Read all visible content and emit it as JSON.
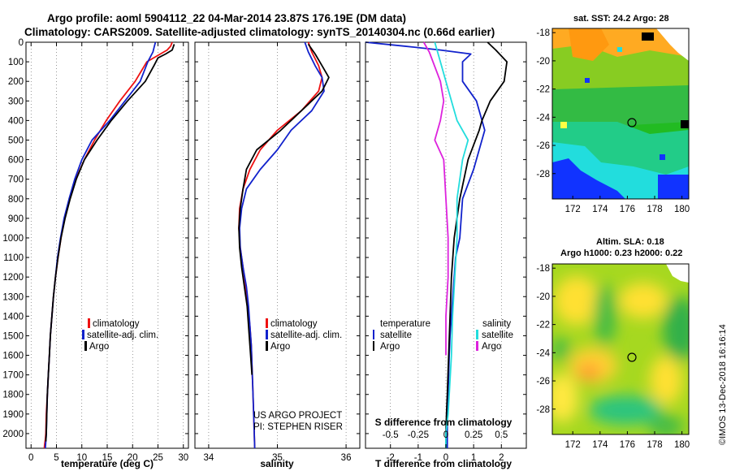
{
  "header": {
    "title_line1": "Argo profile: aoml 5904112_22 04-Mar-2014 23.87S 176.19E (DM data)",
    "title_line2": "Climatology: CARS2009. Satellite-adjusted climatology: synTS_20140304.nc (0.66d earlier)"
  },
  "credits": {
    "line1": "US ARGO PROJECT",
    "line2": "PI: STEPHEN RISER",
    "imos": "©IMOS 13-Dec-2018 16:16:14"
  },
  "colors": {
    "climatology": "#ee1111",
    "satellite": "#1122cc",
    "argo": "#000000",
    "salinity_sat": "#22dddd",
    "salinity_argo": "#dd22dd"
  },
  "chart_data": [
    {
      "id": "temperature",
      "type": "line",
      "xlabel": "temperature (deg C)",
      "ylabel": "",
      "xlim": [
        -1,
        31
      ],
      "ylim": [
        2075,
        0
      ],
      "xticks": [
        0,
        5,
        10,
        15,
        20,
        25,
        30
      ],
      "yticks": [
        0,
        100,
        200,
        300,
        400,
        500,
        600,
        700,
        800,
        900,
        1000,
        1100,
        1200,
        1300,
        1400,
        1500,
        1600,
        1700,
        1800,
        1900,
        2000
      ],
      "legend": [
        "climatology",
        "satellite-adj. clim.",
        "Argo"
      ],
      "legend_position": "lower-center",
      "series": [
        {
          "name": "climatology",
          "color": "#ee1111",
          "x": [
            27.8,
            27.5,
            26.8,
            22.8,
            20.5,
            17.5,
            14.8,
            12.5,
            10.5,
            8.8,
            7.6,
            6.6,
            5.9,
            5.3,
            4.8,
            4.4,
            4.1,
            3.8,
            3.6,
            3.4,
            3.2,
            3.0,
            2.9,
            2.8,
            2.7,
            2.6,
            2.6
          ],
          "y": [
            0,
            20,
            40,
            100,
            200,
            300,
            400,
            500,
            600,
            700,
            800,
            900,
            1000,
            1100,
            1200,
            1300,
            1400,
            1500,
            1600,
            1700,
            1800,
            1900,
            2000,
            2030,
            2050,
            2075,
            2075
          ]
        },
        {
          "name": "satellite-adj. clim.",
          "color": "#1122cc",
          "x": [
            24.5,
            24.3,
            24.0,
            23.0,
            21.5,
            18.5,
            15.5,
            12.0,
            10.0,
            8.6,
            7.5,
            6.5,
            5.8,
            5.2,
            4.8,
            4.4,
            4.1,
            3.8,
            3.6,
            3.4,
            3.2,
            3.1,
            3.0,
            2.9,
            2.8
          ],
          "y": [
            0,
            20,
            50,
            100,
            200,
            300,
            400,
            500,
            600,
            700,
            800,
            900,
            1000,
            1100,
            1200,
            1300,
            1400,
            1500,
            1600,
            1700,
            1800,
            1900,
            2000,
            2040,
            2075
          ]
        },
        {
          "name": "Argo",
          "color": "#000000",
          "x": [
            28.2,
            27.8,
            26.5,
            25.0,
            24.2,
            22.5,
            19.0,
            15.8,
            13.0,
            10.5,
            8.9,
            7.7,
            6.7,
            5.9,
            5.3,
            4.8,
            4.4,
            4.1,
            3.8,
            3.6,
            3.4,
            3.2,
            3.1,
            3.0,
            2.9
          ],
          "y": [
            10,
            40,
            60,
            80,
            120,
            200,
            300,
            400,
            500,
            600,
            700,
            800,
            900,
            1000,
            1100,
            1200,
            1300,
            1400,
            1500,
            1600,
            1700,
            1800,
            1900,
            2000,
            2040
          ]
        }
      ]
    },
    {
      "id": "salinity",
      "type": "line",
      "xlabel": "salinity",
      "ylabel": "",
      "xlim": [
        33.8,
        36.2
      ],
      "ylim": [
        2075,
        0
      ],
      "xticks": [
        34,
        35,
        36
      ],
      "xtick_labels": [
        "34",
        "35",
        "36"
      ],
      "legend": [
        "climatology",
        "satellite-adj. clim.",
        "Argo"
      ],
      "legend_position": "lower-right",
      "series": [
        {
          "name": "climatology",
          "color": "#ee1111",
          "x": [
            35.45,
            35.5,
            35.6,
            35.65,
            35.6,
            35.35,
            35.0,
            34.75,
            34.6,
            34.5,
            34.45,
            34.44,
            34.46,
            34.5,
            34.54,
            34.57,
            34.6,
            34.62,
            34.63,
            34.64,
            34.65,
            34.66,
            34.67
          ],
          "y": [
            0,
            50,
            120,
            180,
            250,
            350,
            450,
            550,
            650,
            750,
            850,
            950,
            1050,
            1150,
            1250,
            1350,
            1450,
            1550,
            1650,
            1750,
            1850,
            1950,
            2075
          ]
        },
        {
          "name": "satellite-adj. clim.",
          "color": "#1122cc",
          "x": [
            35.4,
            35.45,
            35.55,
            35.65,
            35.68,
            35.5,
            35.2,
            35.0,
            34.75,
            34.55,
            34.48,
            34.45,
            34.46,
            34.5,
            34.55,
            34.58,
            34.6,
            34.62,
            34.63,
            34.64,
            34.65,
            34.66,
            34.67
          ],
          "y": [
            0,
            50,
            120,
            180,
            250,
            350,
            450,
            550,
            650,
            750,
            850,
            950,
            1050,
            1150,
            1250,
            1350,
            1450,
            1550,
            1650,
            1750,
            1850,
            1950,
            2075
          ]
        },
        {
          "name": "Argo",
          "color": "#000000",
          "x": [
            35.45,
            35.55,
            35.65,
            35.75,
            35.65,
            35.35,
            35.05,
            34.7,
            34.55,
            34.5,
            34.46,
            34.44,
            34.45,
            34.48,
            34.52,
            34.56,
            34.58,
            34.6,
            34.62,
            34.63
          ],
          "y": [
            10,
            60,
            120,
            180,
            250,
            350,
            450,
            550,
            650,
            750,
            850,
            950,
            1050,
            1150,
            1250,
            1350,
            1450,
            1550,
            1650,
            1700
          ]
        }
      ]
    },
    {
      "id": "difference",
      "type": "line",
      "xlabel": "T difference from climatology",
      "xlabel_top": "S difference from climatology",
      "xlim": [
        -2.9,
        2.9
      ],
      "ylim": [
        2075,
        0
      ],
      "xticks": [
        -2,
        -1,
        0,
        1,
        2
      ],
      "xticks_top": [
        -0.5,
        -0.25,
        0,
        0.25,
        0.5
      ],
      "xtick_labels_top": [
        "-0.5",
        "-0.25",
        "0",
        "0.25",
        "0.5"
      ],
      "legend_temperature": {
        "title": "temperature",
        "items": [
          "satellite",
          "Argo"
        ]
      },
      "legend_salinity": {
        "title": "salinity",
        "items": [
          "satellite",
          "Argo"
        ]
      },
      "legend_position": "lower",
      "series": [
        {
          "name": "satellite",
          "group": "temperature",
          "color": "#1122cc",
          "x": [
            -2.9,
            -1.5,
            -0.2,
            0.9,
            0.6,
            0.6,
            1.1,
            1.4,
            1.0,
            0.6,
            0.5,
            0.35,
            0.3,
            0.25,
            0.2,
            0.15,
            0.12,
            0.1,
            0.08,
            0.05,
            0.05,
            0.05
          ],
          "y": [
            0,
            20,
            40,
            60,
            100,
            200,
            300,
            450,
            650,
            800,
            1000,
            1100,
            1200,
            1300,
            1400,
            1500,
            1600,
            1700,
            1800,
            1900,
            2000,
            2075
          ]
        },
        {
          "name": "Argo",
          "group": "temperature",
          "color": "#000000",
          "x": [
            1.5,
            1.8,
            2.2,
            2.1,
            1.6,
            1.3,
            1.2,
            0.8,
            0.5,
            0.3,
            0.2,
            0.15,
            0.1,
            0.05,
            0.02,
            0.0,
            0.0
          ],
          "y": [
            0,
            40,
            100,
            200,
            300,
            400,
            450,
            600,
            800,
            1000,
            1200,
            1400,
            1600,
            1800,
            1900,
            2000,
            2075
          ]
        },
        {
          "name": "satellite",
          "group": "salinity",
          "color": "#22dddd",
          "x": [
            -0.1,
            -0.05,
            0.0,
            0.05,
            0.1,
            0.2,
            0.15,
            0.1,
            0.1,
            0.08,
            0.06,
            0.05,
            0.03,
            0.02,
            0.0,
            0.0
          ],
          "y": [
            0,
            100,
            200,
            300,
            400,
            500,
            600,
            800,
            1000,
            1200,
            1400,
            1600,
            1800,
            1900,
            2000,
            2075
          ]
        },
        {
          "name": "Argo",
          "group": "salinity",
          "color": "#dd22dd",
          "x": [
            -0.2,
            -0.15,
            -0.05,
            -0.02,
            -0.05,
            -0.1,
            -0.02,
            0.0,
            0.02,
            0.02,
            0.0,
            0.0
          ],
          "y": [
            0,
            50,
            200,
            300,
            400,
            500,
            600,
            800,
            1000,
            1200,
            1400,
            1600
          ]
        }
      ]
    },
    {
      "id": "sst_map",
      "type": "heatmap",
      "title": "sat. SST: 24.2 Argo: 28",
      "xlim": [
        170.5,
        180.5
      ],
      "ylim": [
        -29.8,
        -17.7
      ],
      "xticks": [
        172,
        174,
        176,
        178,
        180
      ],
      "yticks": [
        -18,
        -20,
        -22,
        -24,
        -26,
        -28
      ],
      "marker": {
        "lon": 176.19,
        "lat": -23.87
      }
    },
    {
      "id": "sla_map",
      "type": "heatmap",
      "title": "Altim. SLA: 0.18",
      "subtitle": "Argo h1000: 0.23 h2000: 0.22",
      "xlim": [
        170.5,
        180.5
      ],
      "ylim": [
        -29.8,
        -17.7
      ],
      "xticks": [
        172,
        174,
        176,
        178,
        180
      ],
      "yticks": [
        -18,
        -20,
        -22,
        -24,
        -26,
        -28
      ],
      "marker": {
        "lon": 176.19,
        "lat": -23.87
      }
    }
  ]
}
